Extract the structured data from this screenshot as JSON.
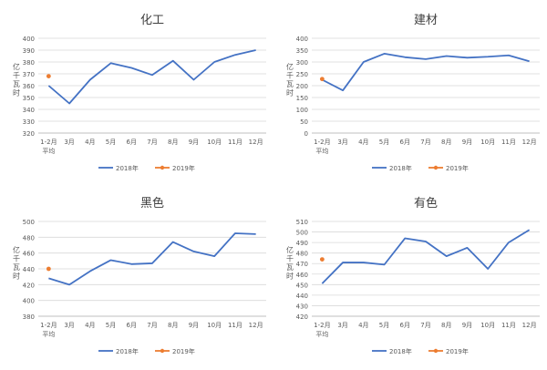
{
  "chart_data": [
    {
      "type": "line",
      "title": "化工",
      "ylabel": "亿千瓦时",
      "categories": [
        "1-2月\n平均",
        "3月",
        "4月",
        "5月",
        "6月",
        "7月",
        "8月",
        "9月",
        "10月",
        "11月",
        "12月"
      ],
      "ylim": [
        320,
        400
      ],
      "yticks": [
        320,
        330,
        340,
        350,
        360,
        370,
        380,
        390,
        400
      ],
      "grid": true,
      "legend": "bottom",
      "series": [
        {
          "name": "2018年",
          "color": "#4472C4",
          "values": [
            360,
            345,
            365,
            379,
            375,
            369,
            381,
            365,
            380,
            386,
            390
          ]
        },
        {
          "name": "2019年",
          "color": "#ED7D31",
          "values": [
            368,
            null,
            null,
            null,
            null,
            null,
            null,
            null,
            null,
            null,
            null
          ]
        }
      ]
    },
    {
      "type": "line",
      "title": "建材",
      "ylabel": "亿千瓦时",
      "categories": [
        "1-2月\n平均",
        "3月",
        "4月",
        "5月",
        "6月",
        "7月",
        "8月",
        "9月",
        "10月",
        "11月",
        "12月"
      ],
      "ylim": [
        0,
        400
      ],
      "yticks": [
        0,
        50,
        100,
        150,
        200,
        250,
        300,
        350,
        400
      ],
      "grid": true,
      "legend": "bottom",
      "series": [
        {
          "name": "2018年",
          "color": "#4472C4",
          "values": [
            225,
            180,
            300,
            335,
            320,
            312,
            325,
            318,
            322,
            328,
            303
          ]
        },
        {
          "name": "2019年",
          "color": "#ED7D31",
          "values": [
            228,
            null,
            null,
            null,
            null,
            null,
            null,
            null,
            null,
            null,
            null
          ]
        }
      ]
    },
    {
      "type": "line",
      "title": "黑色",
      "ylabel": "亿千瓦时",
      "categories": [
        "1-2月\n平均",
        "3月",
        "4月",
        "5月",
        "6月",
        "7月",
        "8月",
        "9月",
        "10月",
        "11月",
        "12月"
      ],
      "ylim": [
        380,
        500
      ],
      "yticks": [
        380,
        400,
        420,
        440,
        460,
        480,
        500
      ],
      "grid": true,
      "legend": "bottom",
      "series": [
        {
          "name": "2018年",
          "color": "#4472C4",
          "values": [
            428,
            420,
            437,
            451,
            446,
            447,
            474,
            462,
            456,
            485,
            484
          ]
        },
        {
          "name": "2019年",
          "color": "#ED7D31",
          "values": [
            440,
            null,
            null,
            null,
            null,
            null,
            null,
            null,
            null,
            null,
            null
          ]
        }
      ]
    },
    {
      "type": "line",
      "title": "有色",
      "ylabel": "亿千瓦时",
      "categories": [
        "1-2月\n平均",
        "3月",
        "4月",
        "5月",
        "6月",
        "7月",
        "8月",
        "9月",
        "10月",
        "11月",
        "12月"
      ],
      "ylim": [
        420,
        510
      ],
      "yticks": [
        420,
        430,
        440,
        450,
        460,
        470,
        480,
        490,
        500,
        510
      ],
      "grid": true,
      "legend": "bottom",
      "series": [
        {
          "name": "2018年",
          "color": "#4472C4",
          "values": [
            451,
            471,
            471,
            469,
            494,
            491,
            477,
            485,
            465,
            490,
            502
          ]
        },
        {
          "name": "2019年",
          "color": "#ED7D31",
          "values": [
            474,
            null,
            null,
            null,
            null,
            null,
            null,
            null,
            null,
            null,
            null
          ]
        }
      ]
    }
  ]
}
